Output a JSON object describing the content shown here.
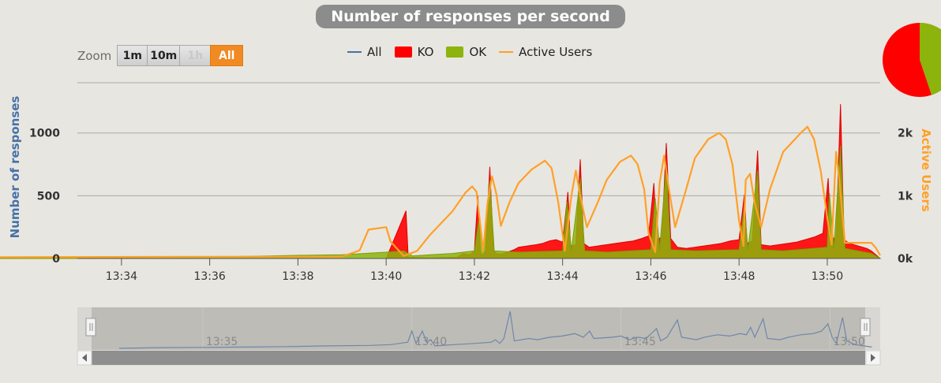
{
  "title": "Number of responses per second",
  "zoom": {
    "label": "Zoom",
    "buttons": [
      "1m",
      "10m",
      "1h",
      "All"
    ],
    "disabled": "1h",
    "active": "All"
  },
  "legend": [
    {
      "name": "All",
      "color": "#4572a7",
      "kind": "line"
    },
    {
      "name": "KO",
      "color": "#ff0000",
      "kind": "box"
    },
    {
      "name": "OK",
      "color": "#8cb40c",
      "kind": "box"
    },
    {
      "name": "Active Users",
      "color": "#ffa028",
      "kind": "line"
    }
  ],
  "colors": {
    "all": "#4572a7",
    "ko": "#ff0000",
    "ok": "#8cb40c",
    "active_users": "#ffa028"
  },
  "chart_data": [
    {
      "type": "area",
      "title": "Number of responses per second",
      "ylabel": "Number of responses",
      "y2label": "Active Users",
      "x_range": [
        "13:33",
        "13:50"
      ],
      "x_ticks": [
        "13:34",
        "13:36",
        "13:38",
        "13:40",
        "13:42",
        "13:44",
        "13:46",
        "13:48",
        "13:50"
      ],
      "y_ticks": [
        "0",
        "500",
        "1000"
      ],
      "y2_ticks": [
        "0k",
        "1k",
        "2k"
      ],
      "ylim": [
        0,
        1400
      ],
      "y2lim": [
        0,
        2800
      ],
      "grid": true,
      "legend_position": "top-center",
      "series": [
        {
          "name": "Active Users",
          "axis": "right",
          "values": [
            [
              13.55,
              0
            ],
            [
              39.0,
              30
            ],
            [
              39.4,
              130
            ],
            [
              39.6,
              460
            ],
            [
              40.0,
              500
            ],
            [
              40.1,
              270
            ],
            [
              40.4,
              40
            ],
            [
              40.7,
              120
            ],
            [
              41.0,
              380
            ],
            [
              41.5,
              750
            ],
            [
              41.8,
              1050
            ],
            [
              41.95,
              1150
            ],
            [
              42.05,
              1060
            ],
            [
              42.2,
              120
            ],
            [
              42.3,
              900
            ],
            [
              42.4,
              1310
            ],
            [
              42.5,
              1020
            ],
            [
              42.6,
              520
            ],
            [
              42.8,
              900
            ],
            [
              43.0,
              1200
            ],
            [
              43.3,
              1420
            ],
            [
              43.6,
              1560
            ],
            [
              43.75,
              1440
            ],
            [
              43.9,
              900
            ],
            [
              44.05,
              120
            ],
            [
              44.2,
              1000
            ],
            [
              44.3,
              1400
            ],
            [
              44.4,
              1000
            ],
            [
              44.55,
              500
            ],
            [
              44.8,
              900
            ],
            [
              45.0,
              1250
            ],
            [
              45.3,
              1540
            ],
            [
              45.55,
              1640
            ],
            [
              45.7,
              1500
            ],
            [
              45.85,
              1100
            ],
            [
              45.95,
              400
            ],
            [
              46.1,
              100
            ],
            [
              46.2,
              1200
            ],
            [
              46.3,
              1640
            ],
            [
              46.4,
              1150
            ],
            [
              46.55,
              500
            ],
            [
              46.8,
              1100
            ],
            [
              47.0,
              1600
            ],
            [
              47.3,
              1900
            ],
            [
              47.55,
              2000
            ],
            [
              47.7,
              1900
            ],
            [
              47.85,
              1500
            ],
            [
              48.0,
              600
            ],
            [
              48.1,
              200
            ],
            [
              48.15,
              1250
            ],
            [
              48.25,
              1350
            ],
            [
              48.35,
              900
            ],
            [
              48.5,
              500
            ],
            [
              48.7,
              1100
            ],
            [
              49.0,
              1700
            ],
            [
              49.4,
              2000
            ],
            [
              49.55,
              2100
            ],
            [
              49.7,
              1900
            ],
            [
              49.85,
              1400
            ],
            [
              50.0,
              650
            ],
            [
              50.1,
              220
            ],
            [
              50.2,
              1700
            ],
            [
              50.28,
              1200
            ],
            [
              50.4,
              250
            ],
            [
              50.6,
              250
            ],
            [
              50.8,
              250
            ],
            [
              51.0,
              250
            ],
            [
              51.1,
              170
            ],
            [
              51.2,
              50
            ]
          ]
        },
        {
          "name": "KO",
          "axis": "left",
          "values": [
            [
              13.55,
              0
            ],
            [
              40.0,
              0
            ],
            [
              40.45,
              380
            ],
            [
              40.5,
              10
            ],
            [
              41.0,
              5
            ],
            [
              41.6,
              10
            ],
            [
              41.75,
              40
            ],
            [
              41.9,
              30
            ],
            [
              42.0,
              60
            ],
            [
              42.08,
              500
            ],
            [
              42.14,
              40
            ],
            [
              42.2,
              30
            ],
            [
              42.25,
              60
            ],
            [
              42.35,
              730
            ],
            [
              42.43,
              60
            ],
            [
              42.5,
              40
            ],
            [
              42.6,
              35
            ],
            [
              42.75,
              50
            ],
            [
              42.9,
              70
            ],
            [
              43.0,
              90
            ],
            [
              43.2,
              100
            ],
            [
              43.4,
              110
            ],
            [
              43.55,
              120
            ],
            [
              43.7,
              140
            ],
            [
              43.85,
              150
            ],
            [
              44.0,
              130
            ],
            [
              44.12,
              530
            ],
            [
              44.18,
              100
            ],
            [
              44.3,
              110
            ],
            [
              44.4,
              790
            ],
            [
              44.48,
              120
            ],
            [
              44.6,
              90
            ],
            [
              44.8,
              100
            ],
            [
              45.0,
              110
            ],
            [
              45.2,
              120
            ],
            [
              45.4,
              130
            ],
            [
              45.6,
              140
            ],
            [
              45.8,
              160
            ],
            [
              45.95,
              180
            ],
            [
              46.07,
              600
            ],
            [
              46.13,
              150
            ],
            [
              46.25,
              170
            ],
            [
              46.35,
              920
            ],
            [
              46.45,
              160
            ],
            [
              46.6,
              90
            ],
            [
              46.8,
              80
            ],
            [
              47.0,
              90
            ],
            [
              47.2,
              100
            ],
            [
              47.4,
              110
            ],
            [
              47.6,
              120
            ],
            [
              47.8,
              140
            ],
            [
              48.0,
              150
            ],
            [
              48.12,
              510
            ],
            [
              48.18,
              120
            ],
            [
              48.3,
              140
            ],
            [
              48.42,
              860
            ],
            [
              48.5,
              110
            ],
            [
              48.7,
              100
            ],
            [
              48.9,
              110
            ],
            [
              49.1,
              120
            ],
            [
              49.3,
              130
            ],
            [
              49.5,
              150
            ],
            [
              49.7,
              170
            ],
            [
              49.9,
              200
            ],
            [
              50.02,
              640
            ],
            [
              50.08,
              150
            ],
            [
              50.2,
              170
            ],
            [
              50.3,
              1230
            ],
            [
              50.38,
              150
            ],
            [
              50.5,
              120
            ],
            [
              50.7,
              100
            ],
            [
              50.9,
              80
            ],
            [
              51.0,
              60
            ],
            [
              51.1,
              30
            ],
            [
              51.2,
              0
            ]
          ]
        },
        {
          "name": "OK",
          "axis": "left",
          "values": [
            [
              13.55,
              3
            ],
            [
              34.0,
              8
            ],
            [
              35.0,
              10
            ],
            [
              36.0,
              12
            ],
            [
              37.0,
              18
            ],
            [
              38.0,
              25
            ],
            [
              39.0,
              30
            ],
            [
              39.5,
              40
            ],
            [
              40.0,
              50
            ],
            [
              40.4,
              60
            ],
            [
              40.6,
              20
            ],
            [
              41.0,
              30
            ],
            [
              41.5,
              40
            ],
            [
              42.0,
              60
            ],
            [
              42.1,
              300
            ],
            [
              42.2,
              60
            ],
            [
              42.35,
              620
            ],
            [
              42.45,
              60
            ],
            [
              43.0,
              50
            ],
            [
              44.0,
              60
            ],
            [
              44.1,
              450
            ],
            [
              44.2,
              60
            ],
            [
              44.4,
              640
            ],
            [
              44.5,
              60
            ],
            [
              45.0,
              50
            ],
            [
              46.0,
              70
            ],
            [
              46.1,
              480
            ],
            [
              46.2,
              70
            ],
            [
              46.35,
              740
            ],
            [
              46.45,
              70
            ],
            [
              47.0,
              60
            ],
            [
              48.0,
              70
            ],
            [
              48.12,
              420
            ],
            [
              48.2,
              70
            ],
            [
              48.42,
              700
            ],
            [
              48.5,
              70
            ],
            [
              49.0,
              60
            ],
            [
              50.0,
              90
            ],
            [
              50.05,
              520
            ],
            [
              50.15,
              80
            ],
            [
              50.3,
              900
            ],
            [
              50.4,
              80
            ],
            [
              51.0,
              40
            ],
            [
              51.2,
              0
            ]
          ]
        }
      ]
    },
    {
      "type": "line",
      "title": "",
      "x_ticks": [
        "13:35",
        "13:40",
        "13:45",
        "13:50"
      ],
      "series": [
        {
          "name": "All",
          "values": [
            [
              33.0,
              0
            ],
            [
              34.0,
              3
            ],
            [
              35.0,
              4
            ],
            [
              36.0,
              5
            ],
            [
              37.0,
              7
            ],
            [
              38.0,
              10
            ],
            [
              39.0,
              12
            ],
            [
              39.5,
              15
            ],
            [
              39.9,
              25
            ],
            [
              40.0,
              70
            ],
            [
              40.1,
              20
            ],
            [
              40.25,
              70
            ],
            [
              40.35,
              25
            ],
            [
              40.45,
              35
            ],
            [
              40.55,
              10
            ],
            [
              41.0,
              15
            ],
            [
              41.5,
              20
            ],
            [
              41.9,
              25
            ],
            [
              42.0,
              35
            ],
            [
              42.1,
              20
            ],
            [
              42.2,
              40
            ],
            [
              42.35,
              150
            ],
            [
              42.45,
              30
            ],
            [
              42.8,
              40
            ],
            [
              43.0,
              35
            ],
            [
              43.3,
              45
            ],
            [
              43.6,
              50
            ],
            [
              43.9,
              60
            ],
            [
              44.1,
              45
            ],
            [
              44.25,
              70
            ],
            [
              44.35,
              40
            ],
            [
              44.8,
              45
            ],
            [
              45.0,
              50
            ],
            [
              45.2,
              35
            ],
            [
              45.4,
              45
            ],
            [
              45.6,
              40
            ],
            [
              45.85,
              80
            ],
            [
              45.95,
              30
            ],
            [
              46.1,
              45
            ],
            [
              46.35,
              115
            ],
            [
              46.45,
              45
            ],
            [
              46.8,
              35
            ],
            [
              47.0,
              45
            ],
            [
              47.3,
              55
            ],
            [
              47.6,
              50
            ],
            [
              47.85,
              60
            ],
            [
              48.0,
              55
            ],
            [
              48.1,
              85
            ],
            [
              48.2,
              45
            ],
            [
              48.4,
              120
            ],
            [
              48.5,
              40
            ],
            [
              48.8,
              35
            ],
            [
              49.0,
              45
            ],
            [
              49.3,
              55
            ],
            [
              49.6,
              60
            ],
            [
              49.8,
              70
            ],
            [
              49.95,
              100
            ],
            [
              50.05,
              45
            ],
            [
              50.15,
              20
            ],
            [
              50.3,
              125
            ],
            [
              50.4,
              30
            ],
            [
              50.6,
              15
            ],
            [
              51.0,
              5
            ]
          ]
        }
      ]
    }
  ]
}
